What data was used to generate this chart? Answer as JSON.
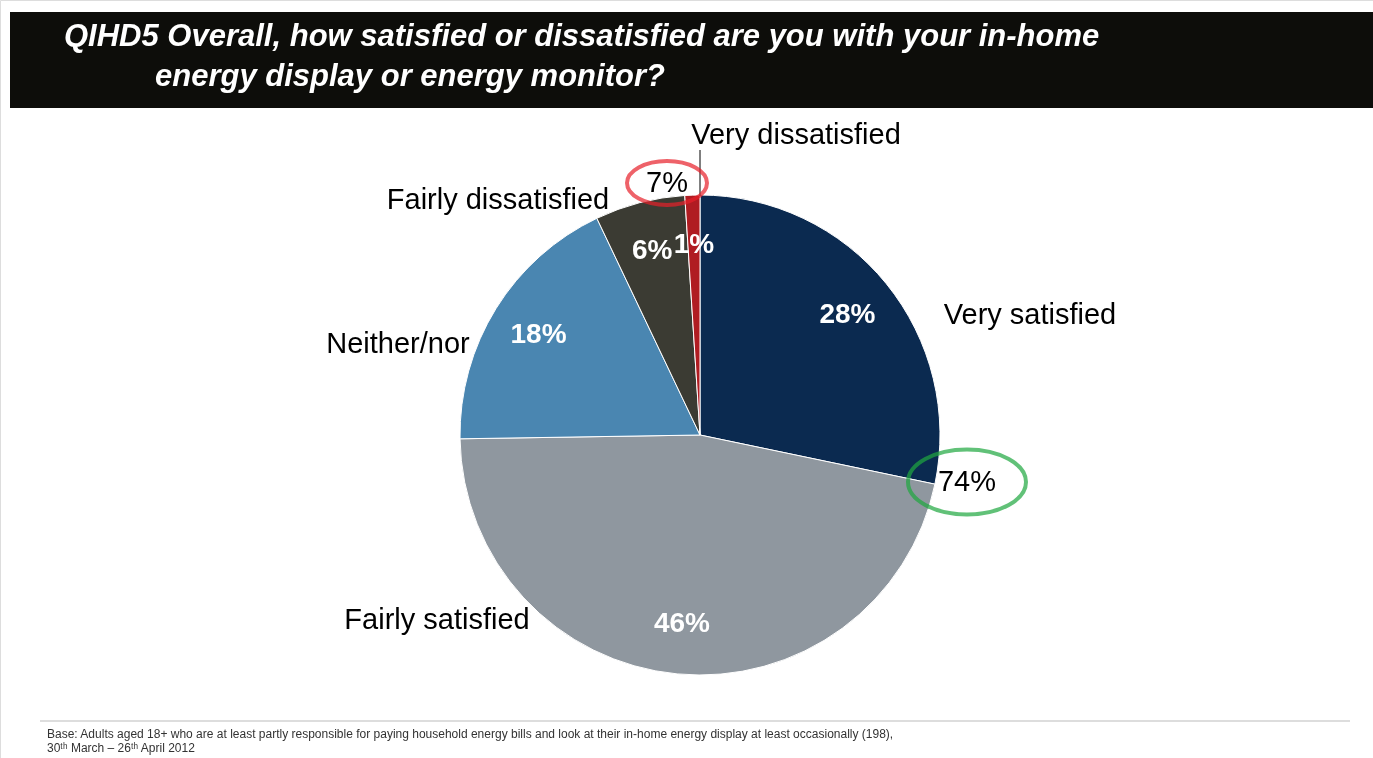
{
  "chart_data": {
    "type": "pie",
    "title": "QIHD5 Overall, how satisfied or dissatisfied are you with your in-home energy display or energy monitor?",
    "categories": [
      "Very satisfied",
      "Fairly satisfied",
      "Neither/nor",
      "Fairly dissatisfied",
      "Very dissatisfied"
    ],
    "values": [
      28,
      46,
      18,
      6,
      1
    ],
    "value_labels": [
      "28%",
      "46%",
      "18%",
      "6%",
      "1%"
    ],
    "colors": [
      "#0b2a50",
      "#8f979f",
      "#4a86b1",
      "#3b3b33",
      "#b01c22"
    ],
    "annotations": [
      "7%",
      "74%",
      "Base:  Adults aged 18+ who are at least partly responsible for paying household energy bills and look at their in-home energy display at least occasionally (198), 30ᵗʰ March – 26ᵗʰ April 2012"
    ]
  }
}
